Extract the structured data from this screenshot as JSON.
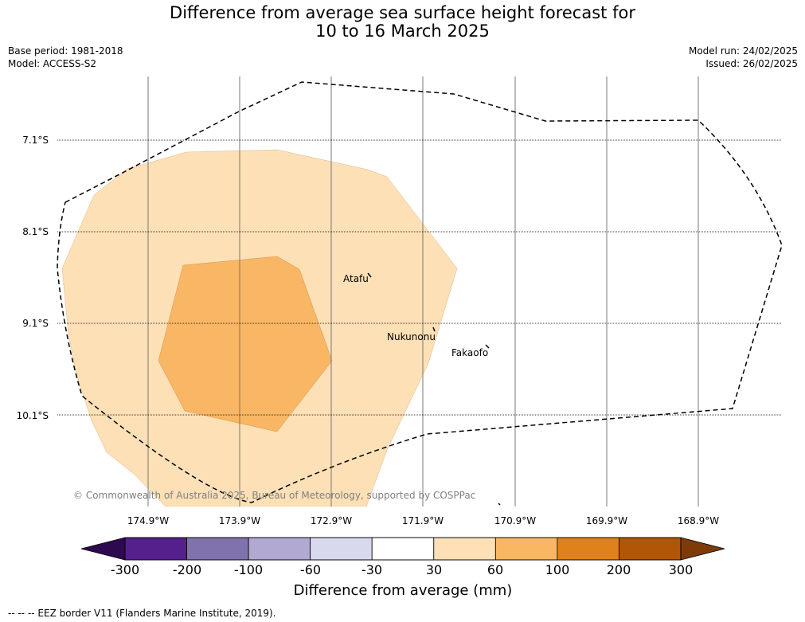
{
  "title": {
    "line1": "Difference from average sea surface height forecast for",
    "line2": "10 to 16 March 2025"
  },
  "info_left": {
    "base_period": "Base period: 1981-2018",
    "model": "Model: ACCESS-S2"
  },
  "info_right": {
    "model_run": "Model run: 24/02/2025",
    "issued": "Issued: 26/02/2025"
  },
  "map": {
    "lat_labels": [
      "7.1°S",
      "8.1°S",
      "9.1°S",
      "10.1°S"
    ],
    "lon_labels": [
      "174.9°W",
      "173.9°W",
      "172.9°W",
      "171.9°W",
      "170.9°W",
      "169.9°W",
      "168.9°W"
    ],
    "places": [
      "Atafu",
      "Nukunonu",
      "Fakaofo"
    ],
    "copyright": "© Commonwealth of Australia 2025, Bureau of Meteorology, supported by COSPPac",
    "fill_colors": {
      "band_30_60": "#fde0b6",
      "band_60_100": "#f9b664"
    }
  },
  "colorbar": {
    "ticks": [
      "-300",
      "-200",
      "-100",
      "-60",
      "-30",
      "30",
      "60",
      "100",
      "200",
      "300"
    ],
    "colors": [
      "#55208c",
      "#8072ad",
      "#b1a9d2",
      "#d8d9ec",
      "#ffffff",
      "#fde0b6",
      "#f9b664",
      "#e0821b",
      "#b05606"
    ],
    "extend_low_color": "#2d0a4f",
    "extend_high_color": "#7f3b07",
    "label": "Difference from average (mm)"
  },
  "footnote": "--  --  -- EEZ border V11 (Flanders Marine Institute, 2019)."
}
